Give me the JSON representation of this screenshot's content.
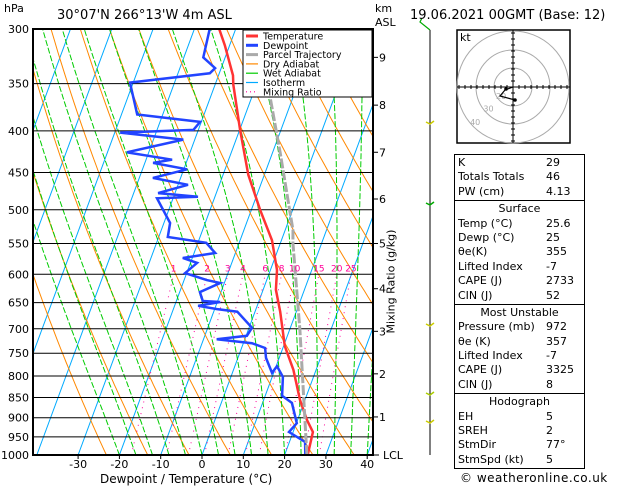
{
  "header": {
    "pressure_unit": "hPa",
    "location": "30°07'N  266°13'W  4m ASL",
    "km_label": "km",
    "asl_label": "ASL",
    "datetime": "19.06.2021  00GMT (Base: 12)"
  },
  "colors": {
    "temperature": "#ff3333",
    "dewpoint": "#2244ff",
    "parcel": "#aaaaaa",
    "dry_adiabat": "#ff8800",
    "wet_adiabat": "#00cc00",
    "isotherm": "#00aaff",
    "mixing_ratio": "#ff0099"
  },
  "chart_data": {
    "type": "line",
    "title": "Skew-T log-P diagram",
    "xlabel": "Dewpoint / Temperature (°C)",
    "ylabel": "hPa",
    "right_label": "Mixing Ratio (g/kg)",
    "xlim": [
      -35,
      40
    ],
    "ylim": [
      1000,
      300
    ],
    "x_ticks": [
      "-30",
      "-20",
      "-10",
      "0",
      "10",
      "20",
      "30",
      "40"
    ],
    "pressure_ticks": [
      "300",
      "350",
      "400",
      "450",
      "500",
      "550",
      "600",
      "650",
      "700",
      "750",
      "800",
      "850",
      "900",
      "950",
      "1000"
    ],
    "km_ticks": [
      "1",
      "2",
      "3",
      "4",
      "5",
      "6",
      "7",
      "8",
      "9"
    ],
    "km_tick_pressures": [
      898,
      795,
      705,
      625,
      550,
      485,
      425,
      372,
      325
    ],
    "lcl_label": "LCL",
    "mixing_ratio_labels": [
      "1",
      "2",
      "3",
      "4",
      "6",
      "8",
      "10",
      "15",
      "20",
      "25"
    ],
    "legend": [
      "Temperature",
      "Dewpoint",
      "Parcel Trajectory",
      "Dry Adiabat",
      "Wet Adiabat",
      "Isotherm",
      "Mixing Ratio"
    ],
    "legend_placement": "top-right",
    "series": [
      {
        "name": "Temperature",
        "pressure": [
          1000,
          937,
          906,
          856,
          786,
          735,
          667,
          627,
          593,
          545,
          500,
          453,
          399,
          351,
          342,
          314,
          300
        ],
        "temperature": [
          25.6,
          24.8,
          22.3,
          18.8,
          14.5,
          10.3,
          6.1,
          3.1,
          1.6,
          -2.3,
          -7.9,
          -13.9,
          -19.9,
          -25.6,
          -26.5,
          -31.2,
          -34
        ]
      },
      {
        "name": "Dewpoint",
        "pressure": [
          1000,
          964,
          937,
          914,
          863,
          846,
          802,
          778,
          793,
          760,
          739,
          729,
          721,
          714,
          698,
          667,
          662,
          656,
          649,
          647,
          631,
          615,
          610,
          598,
          581,
          573,
          565,
          549,
          540,
          519,
          484,
          482,
          477,
          466,
          457,
          446,
          438,
          434,
          425,
          410,
          402,
          399,
          390,
          382,
          349,
          340,
          335,
          325,
          300
        ],
        "temperature": [
          25,
          23.8,
          19.0,
          20.1,
          17.1,
          14.1,
          12.6,
          10.2,
          9.6,
          6.8,
          5.7,
          2.1,
          -6.8,
          0.2,
          0.7,
          -4.3,
          -9.4,
          -14.3,
          -9.3,
          -13.6,
          -15.1,
          -11.0,
          -14.5,
          -20.4,
          -18.4,
          -22.3,
          -14.9,
          -18.0,
          -27.8,
          -28.5,
          -33.9,
          -24.1,
          -34.1,
          -27.6,
          -36.7,
          -29.2,
          -38.0,
          -33.7,
          -45.3,
          -32.8,
          -48.7,
          -31.2,
          -30.3,
          -46.2,
          -50.8,
          -32.3,
          -31.5,
          -35.3,
          -36.3
        ]
      },
      {
        "name": "Parcel Trajectory",
        "pressure": [
          1000,
          702,
          549,
          530,
          425,
          362
        ],
        "temperature": [
          25.4,
          12.5,
          3.0,
          1.9,
          -8.2,
          -15.8
        ]
      }
    ]
  },
  "hodograph": {
    "unit_label": "kt",
    "ring_labels": [
      "20",
      "30",
      "40"
    ]
  },
  "stats": {
    "indices": [
      {
        "label": "K",
        "value": "29"
      },
      {
        "label": "Totals Totals",
        "value": "46"
      },
      {
        "label": "PW (cm)",
        "value": "4.13"
      }
    ],
    "surface": {
      "title": "Surface",
      "rows": [
        {
          "label": "Temp (°C)",
          "value": "25.6"
        },
        {
          "label": "Dewp (°C)",
          "value": "25"
        },
        {
          "label": "θe(K)",
          "value": "355"
        },
        {
          "label": "Lifted Index",
          "value": "-7"
        },
        {
          "label": "CAPE (J)",
          "value": "2733"
        },
        {
          "label": "CIN (J)",
          "value": "52"
        }
      ]
    },
    "most_unstable": {
      "title": "Most Unstable",
      "rows": [
        {
          "label": "Pressure (mb)",
          "value": "972"
        },
        {
          "label": "θe (K)",
          "value": "357"
        },
        {
          "label": "Lifted Index",
          "value": "-7"
        },
        {
          "label": "CAPE (J)",
          "value": "3325"
        },
        {
          "label": "CIN (J)",
          "value": "8"
        }
      ]
    },
    "hodograph": {
      "title": "Hodograph",
      "rows": [
        {
          "label": "EH",
          "value": "5"
        },
        {
          "label": "SREH",
          "value": "2"
        },
        {
          "label": "StmDir",
          "value": "77°"
        },
        {
          "label": "StmSpd (kt)",
          "value": "5"
        }
      ]
    }
  },
  "footer": {
    "copyright": "© weatheronline.co.uk"
  }
}
